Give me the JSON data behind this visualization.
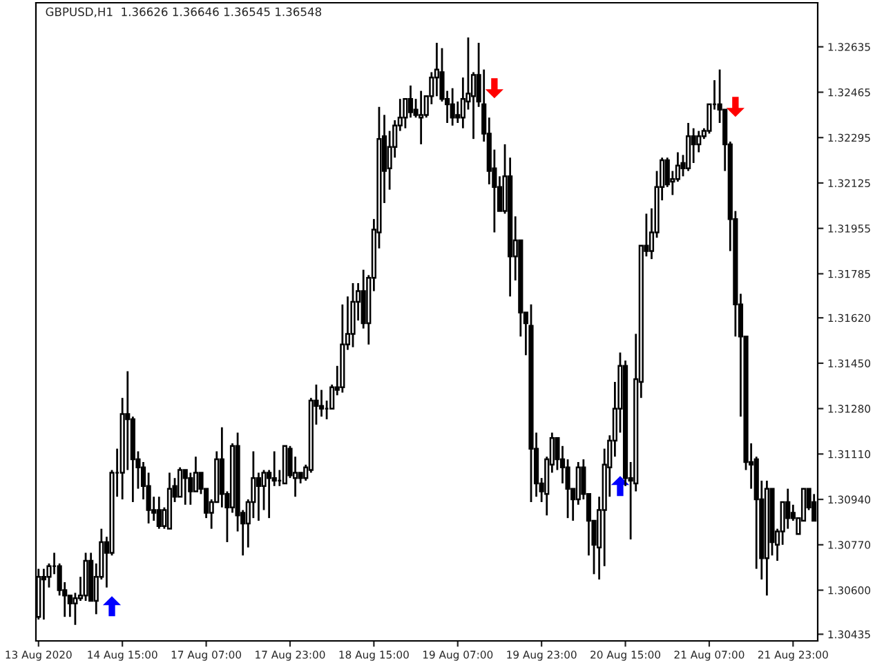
{
  "chart_data": {
    "type": "candlestick",
    "title": "GBPUSD,H1  1.36626 1.36646 1.36545 1.36548",
    "categories": [
      "13 Aug 2020",
      null,
      null,
      null,
      null,
      null,
      null,
      null,
      null,
      null,
      null,
      null,
      null,
      null,
      null,
      null,
      "14 Aug 15:00",
      null,
      null,
      null,
      null,
      null,
      null,
      null,
      null,
      null,
      null,
      null,
      null,
      null,
      null,
      null,
      "17 Aug 07:00",
      null,
      null,
      null,
      null,
      null,
      null,
      null,
      null,
      null,
      null,
      null,
      null,
      null,
      null,
      null,
      "17 Aug 23:00",
      null,
      null,
      null,
      null,
      null,
      null,
      null,
      null,
      null,
      null,
      null,
      null,
      null,
      null,
      null,
      "18 Aug 15:00",
      null,
      null,
      null,
      null,
      null,
      null,
      null,
      null,
      null,
      null,
      null,
      null,
      null,
      null,
      null,
      "19 Aug 07:00",
      null,
      null,
      null,
      null,
      null,
      null,
      null,
      null,
      null,
      null,
      null,
      null,
      null,
      null,
      null,
      "19 Aug 23:00",
      null,
      null,
      null,
      null,
      null,
      null,
      null,
      null,
      null,
      null,
      null,
      null,
      null,
      null,
      null,
      "20 Aug 15:00",
      null,
      null,
      null,
      null,
      null,
      null,
      null,
      null,
      null,
      null,
      null,
      null,
      null,
      null,
      null,
      "21 Aug 07:00",
      null,
      null,
      null,
      null,
      null,
      null,
      null,
      null,
      null,
      null,
      null,
      null,
      null,
      null,
      null,
      "21 Aug 23:00",
      null,
      null,
      null,
      null
    ],
    "ohlc": [
      [
        1.305,
        1.3068,
        1.3049,
        1.3065
      ],
      [
        1.3065,
        1.3068,
        1.3049,
        1.3064
      ],
      [
        1.3065,
        1.307,
        1.3061,
        1.3069
      ],
      [
        1.3069,
        1.3074,
        1.3066,
        1.3069
      ],
      [
        1.3069,
        1.307,
        1.3058,
        1.306
      ],
      [
        1.306,
        1.3063,
        1.305,
        1.3058
      ],
      [
        1.3058,
        1.3058,
        1.305,
        1.3055
      ],
      [
        1.3055,
        1.3059,
        1.3047,
        1.3057
      ],
      [
        1.3057,
        1.3065,
        1.3056,
        1.3058
      ],
      [
        1.3058,
        1.3074,
        1.3056,
        1.3071
      ],
      [
        1.3071,
        1.3074,
        1.3056,
        1.3056
      ],
      [
        1.3056,
        1.307,
        1.3051,
        1.3065
      ],
      [
        1.3065,
        1.3083,
        1.3064,
        1.3078
      ],
      [
        1.3078,
        1.308,
        1.3061,
        1.3074
      ],
      [
        1.3074,
        1.3105,
        1.3073,
        1.3104
      ],
      [
        1.3104,
        1.3113,
        1.3095,
        1.3104
      ],
      [
        1.3104,
        1.3132,
        1.3094,
        1.3126
      ],
      [
        1.3126,
        1.3142,
        1.3105,
        1.3124
      ],
      [
        1.3124,
        1.3125,
        1.3093,
        1.3109
      ],
      [
        1.3109,
        1.3112,
        1.3098,
        1.3106
      ],
      [
        1.3106,
        1.3108,
        1.3094,
        1.3099
      ],
      [
        1.3099,
        1.3104,
        1.3085,
        1.309
      ],
      [
        1.309,
        1.3095,
        1.3086,
        1.3089
      ],
      [
        1.309,
        1.3095,
        1.3083,
        1.3084
      ],
      [
        1.3084,
        1.3091,
        1.3083,
        1.309
      ],
      [
        1.3083,
        1.3104,
        1.3083,
        1.3098
      ],
      [
        1.3099,
        1.3102,
        1.3093,
        1.3095
      ],
      [
        1.3095,
        1.3106,
        1.3095,
        1.3105
      ],
      [
        1.3105,
        1.3105,
        1.3092,
        1.3102
      ],
      [
        1.3102,
        1.3104,
        1.3092,
        1.3097
      ],
      [
        1.3097,
        1.311,
        1.3097,
        1.3104
      ],
      [
        1.3104,
        1.3104,
        1.3096,
        1.3098
      ],
      [
        1.3098,
        1.3098,
        1.3087,
        1.3089
      ],
      [
        1.3089,
        1.3094,
        1.3083,
        1.3093
      ],
      [
        1.3093,
        1.3112,
        1.3093,
        1.3109
      ],
      [
        1.3109,
        1.3121,
        1.3091,
        1.3096
      ],
      [
        1.3096,
        1.3097,
        1.3078,
        1.3091
      ],
      [
        1.3091,
        1.3115,
        1.3089,
        1.3114
      ],
      [
        1.3114,
        1.3119,
        1.3082,
        1.3088
      ],
      [
        1.3089,
        1.309,
        1.3073,
        1.3085
      ],
      [
        1.3085,
        1.3094,
        1.3076,
        1.3093
      ],
      [
        1.3093,
        1.3112,
        1.3087,
        1.3102
      ],
      [
        1.3102,
        1.3104,
        1.3086,
        1.3099
      ],
      [
        1.3099,
        1.3105,
        1.309,
        1.3104
      ],
      [
        1.3104,
        1.3105,
        1.3087,
        1.3102
      ],
      [
        1.3102,
        1.3112,
        1.3099,
        1.3101
      ],
      [
        1.3101,
        1.3105,
        1.3099,
        1.3101
      ],
      [
        1.31,
        1.3114,
        1.31,
        1.3114
      ],
      [
        1.3113,
        1.3114,
        1.3102,
        1.3103
      ],
      [
        1.3102,
        1.311,
        1.3095,
        1.3104
      ],
      [
        1.3104,
        1.3104,
        1.31,
        1.3102
      ],
      [
        1.3102,
        1.3107,
        1.3101,
        1.3106
      ],
      [
        1.3105,
        1.3132,
        1.3104,
        1.3131
      ],
      [
        1.3131,
        1.3137,
        1.3122,
        1.3129
      ],
      [
        1.3129,
        1.3135,
        1.3125,
        1.3128
      ],
      [
        1.3128,
        1.3131,
        1.3124,
        1.3128
      ],
      [
        1.3128,
        1.3137,
        1.3128,
        1.3136
      ],
      [
        1.3136,
        1.3144,
        1.3133,
        1.3135
      ],
      [
        1.3136,
        1.3167,
        1.3134,
        1.3152
      ],
      [
        1.3152,
        1.317,
        1.315,
        1.3156
      ],
      [
        1.3156,
        1.3175,
        1.3151,
        1.3168
      ],
      [
        1.3168,
        1.3175,
        1.3161,
        1.3172
      ],
      [
        1.3172,
        1.318,
        1.3158,
        1.316
      ],
      [
        1.316,
        1.3178,
        1.3152,
        1.3177
      ],
      [
        1.3177,
        1.3199,
        1.3172,
        1.3195
      ],
      [
        1.3194,
        1.3241,
        1.3188,
        1.3229
      ],
      [
        1.323,
        1.3238,
        1.3205,
        1.3217
      ],
      [
        1.3218,
        1.3232,
        1.321,
        1.3226
      ],
      [
        1.3226,
        1.3236,
        1.3222,
        1.3234
      ],
      [
        1.3234,
        1.3244,
        1.3232,
        1.3237
      ],
      [
        1.3237,
        1.3244,
        1.3233,
        1.3244
      ],
      [
        1.3244,
        1.3249,
        1.3237,
        1.3239
      ],
      [
        1.324,
        1.3244,
        1.3237,
        1.3238
      ],
      [
        1.3237,
        1.3247,
        1.3227,
        1.3238
      ],
      [
        1.3238,
        1.3245,
        1.3237,
        1.3245
      ],
      [
        1.3245,
        1.3254,
        1.3242,
        1.3252
      ],
      [
        1.3252,
        1.3265,
        1.3245,
        1.3255
      ],
      [
        1.3254,
        1.3263,
        1.3243,
        1.3244
      ],
      [
        1.3244,
        1.3247,
        1.3235,
        1.3242
      ],
      [
        1.3242,
        1.3248,
        1.3234,
        1.3237
      ],
      [
        1.3238,
        1.3243,
        1.3235,
        1.3237
      ],
      [
        1.3237,
        1.3252,
        1.3233,
        1.3244
      ],
      [
        1.3243,
        1.3267,
        1.324,
        1.3246
      ],
      [
        1.3245,
        1.3254,
        1.3229,
        1.3253
      ],
      [
        1.3253,
        1.3265,
        1.3241,
        1.3243
      ],
      [
        1.3242,
        1.3255,
        1.3228,
        1.3231
      ],
      [
        1.3231,
        1.3237,
        1.3212,
        1.3217
      ],
      [
        1.3218,
        1.3225,
        1.3194,
        1.3211
      ],
      [
        1.3211,
        1.3215,
        1.3202,
        1.3202
      ],
      [
        1.3202,
        1.3227,
        1.3201,
        1.3215
      ],
      [
        1.3215,
        1.3222,
        1.317,
        1.3185
      ],
      [
        1.3185,
        1.32,
        1.3176,
        1.3191
      ],
      [
        1.3191,
        1.3191,
        1.3155,
        1.3164
      ],
      [
        1.3164,
        1.3164,
        1.3148,
        1.316
      ],
      [
        1.3159,
        1.3167,
        1.3093,
        1.3113
      ],
      [
        1.3113,
        1.3119,
        1.3095,
        1.31
      ],
      [
        1.31,
        1.3102,
        1.3093,
        1.3097
      ],
      [
        1.3096,
        1.311,
        1.3088,
        1.3109
      ],
      [
        1.3107,
        1.3119,
        1.3104,
        1.3117
      ],
      [
        1.3117,
        1.3117,
        1.3105,
        1.3109
      ],
      [
        1.3109,
        1.3114,
        1.31,
        1.3106
      ],
      [
        1.3106,
        1.3109,
        1.3087,
        1.3098
      ],
      [
        1.3098,
        1.3098,
        1.3086,
        1.3094
      ],
      [
        1.3094,
        1.3108,
        1.3092,
        1.3106
      ],
      [
        1.3106,
        1.3109,
        1.3094,
        1.3096
      ],
      [
        1.3096,
        1.3096,
        1.3073,
        1.3086
      ],
      [
        1.3086,
        1.3086,
        1.3066,
        1.3077
      ],
      [
        1.3076,
        1.3095,
        1.3064,
        1.309
      ],
      [
        1.309,
        1.3113,
        1.3069,
        1.3107
      ],
      [
        1.3106,
        1.3118,
        1.3095,
        1.3116
      ],
      [
        1.3116,
        1.3138,
        1.311,
        1.3128
      ],
      [
        1.3128,
        1.3149,
        1.3119,
        1.3144
      ],
      [
        1.3144,
        1.3146,
        1.3099,
        1.3102
      ],
      [
        1.3102,
        1.3108,
        1.3079,
        1.3101
      ],
      [
        1.31,
        1.3156,
        1.3097,
        1.3139
      ],
      [
        1.3138,
        1.3189,
        1.3132,
        1.3189
      ],
      [
        1.3189,
        1.3201,
        1.3185,
        1.3187
      ],
      [
        1.3187,
        1.3203,
        1.3184,
        1.3194
      ],
      [
        1.3194,
        1.3217,
        1.3192,
        1.3211
      ],
      [
        1.3211,
        1.3222,
        1.3206,
        1.3221
      ],
      [
        1.3221,
        1.3222,
        1.3211,
        1.3212
      ],
      [
        1.3213,
        1.3217,
        1.3208,
        1.3214
      ],
      [
        1.3214,
        1.3224,
        1.3213,
        1.3219
      ],
      [
        1.322,
        1.3223,
        1.3215,
        1.3218
      ],
      [
        1.3218,
        1.3235,
        1.3217,
        1.323
      ],
      [
        1.323,
        1.3233,
        1.322,
        1.3227
      ],
      [
        1.3227,
        1.3232,
        1.3224,
        1.323
      ],
      [
        1.323,
        1.3233,
        1.3229,
        1.3232
      ],
      [
        1.3232,
        1.3242,
        1.3231,
        1.3242
      ],
      [
        1.3242,
        1.3251,
        1.324,
        1.3242
      ],
      [
        1.3242,
        1.3255,
        1.3235,
        1.324
      ],
      [
        1.324,
        1.324,
        1.3217,
        1.3227
      ],
      [
        1.3227,
        1.3228,
        1.3187,
        1.3199
      ],
      [
        1.3199,
        1.3202,
        1.3155,
        1.3167
      ],
      [
        1.3167,
        1.3171,
        1.3125,
        1.3155
      ],
      [
        1.3155,
        1.3155,
        1.3105,
        1.3108
      ],
      [
        1.3108,
        1.3115,
        1.3098,
        1.3107
      ],
      [
        1.3109,
        1.311,
        1.3068,
        1.3094
      ],
      [
        1.3094,
        1.3101,
        1.3064,
        1.3072
      ],
      [
        1.3072,
        1.3101,
        1.3058,
        1.3098
      ],
      [
        1.3098,
        1.3098,
        1.3073,
        1.3078
      ],
      [
        1.3077,
        1.3083,
        1.3071,
        1.3082
      ],
      [
        1.3082,
        1.3093,
        1.3077,
        1.3093
      ],
      [
        1.3093,
        1.3098,
        1.3083,
        1.3087
      ],
      [
        1.3089,
        1.3092,
        1.3086,
        1.3087
      ],
      [
        1.3081,
        1.3087,
        1.3081,
        1.3087
      ],
      [
        1.3086,
        1.3098,
        1.3086,
        1.3098
      ],
      [
        1.3098,
        1.3098,
        1.309,
        1.3091
      ],
      [
        1.3093,
        1.3096,
        1.3086,
        1.3086
      ]
    ],
    "series": [
      {
        "type": "scatter",
        "color": "#0000ff",
        "values": [
          null,
          null,
          null,
          null,
          null,
          null,
          null,
          null,
          null,
          null,
          null,
          null,
          null,
          null,
          1.3054,
          null,
          null,
          null,
          null,
          null,
          null,
          null,
          null,
          null,
          null,
          null,
          null,
          null,
          null,
          null,
          null,
          null,
          null,
          null,
          null,
          null,
          null,
          null,
          null,
          null,
          null,
          null,
          null,
          null,
          null,
          null,
          null,
          null,
          null,
          null,
          null,
          null,
          null,
          null,
          null,
          null,
          null,
          null,
          null,
          null,
          null,
          null,
          null,
          null,
          null,
          null,
          null,
          null,
          null,
          null,
          null,
          null,
          null,
          null,
          null,
          null,
          null,
          null,
          null,
          null,
          null,
          null,
          null,
          null,
          null,
          null,
          null,
          null,
          null,
          null,
          null,
          null,
          null,
          null,
          null,
          null,
          null,
          null,
          null,
          null,
          null,
          null,
          null,
          null,
          null,
          null,
          null,
          null,
          null,
          null,
          null,
          1.3099,
          null,
          null,
          null,
          null,
          null,
          null,
          null,
          null,
          null,
          null,
          null,
          null,
          null,
          null,
          null,
          null,
          null,
          null,
          null,
          null,
          null,
          null,
          null,
          null,
          null,
          null,
          null,
          null,
          null,
          null,
          null,
          null,
          null,
          null,
          null,
          null,
          null
        ]
      },
      {
        "type": "scatter",
        "color": "#ff0000",
        "values": [
          null,
          null,
          null,
          null,
          null,
          null,
          null,
          null,
          null,
          null,
          null,
          null,
          null,
          null,
          null,
          null,
          null,
          null,
          null,
          null,
          null,
          null,
          null,
          null,
          null,
          null,
          null,
          null,
          null,
          null,
          null,
          null,
          null,
          null,
          null,
          null,
          null,
          null,
          null,
          null,
          null,
          null,
          null,
          null,
          null,
          null,
          null,
          null,
          null,
          null,
          null,
          null,
          null,
          null,
          null,
          null,
          null,
          null,
          null,
          null,
          null,
          null,
          null,
          null,
          null,
          null,
          null,
          null,
          null,
          null,
          null,
          null,
          null,
          null,
          null,
          null,
          null,
          null,
          null,
          null,
          null,
          null,
          null,
          null,
          null,
          null,
          null,
          1.3248,
          null,
          null,
          null,
          null,
          null,
          null,
          null,
          null,
          null,
          null,
          null,
          null,
          null,
          null,
          null,
          null,
          null,
          null,
          null,
          null,
          null,
          null,
          null,
          null,
          null,
          null,
          null,
          null,
          null,
          null,
          null,
          null,
          null,
          null,
          null,
          null,
          null,
          null,
          null,
          null,
          null,
          null,
          null,
          null,
          null,
          1.3241,
          null,
          null,
          null,
          null,
          null,
          null,
          null,
          null,
          null,
          null,
          null,
          null,
          null,
          null,
          null
        ]
      }
    ],
    "ylim": [
      1.3041,
      1.328
    ],
    "yticks": [
      {
        "value": 1.30435,
        "label": "1.30435"
      },
      {
        "value": 1.306,
        "label": "1.30600"
      },
      {
        "value": 1.3077,
        "label": "1.30770"
      },
      {
        "value": 1.3094,
        "label": "1.30940"
      },
      {
        "value": 1.3111,
        "label": "1.31110"
      },
      {
        "value": 1.3128,
        "label": "1.31280"
      },
      {
        "value": 1.3145,
        "label": "1.31450"
      },
      {
        "value": 1.3162,
        "label": "1.31620"
      },
      {
        "value": 1.31785,
        "label": "1.31785"
      },
      {
        "value": 1.31955,
        "label": "1.31955"
      },
      {
        "value": 1.32125,
        "label": "1.32125"
      },
      {
        "value": 1.32295,
        "label": "1.32295"
      },
      {
        "value": 1.32465,
        "label": "1.32465"
      },
      {
        "value": 1.32635,
        "label": "1.32635"
      }
    ]
  }
}
